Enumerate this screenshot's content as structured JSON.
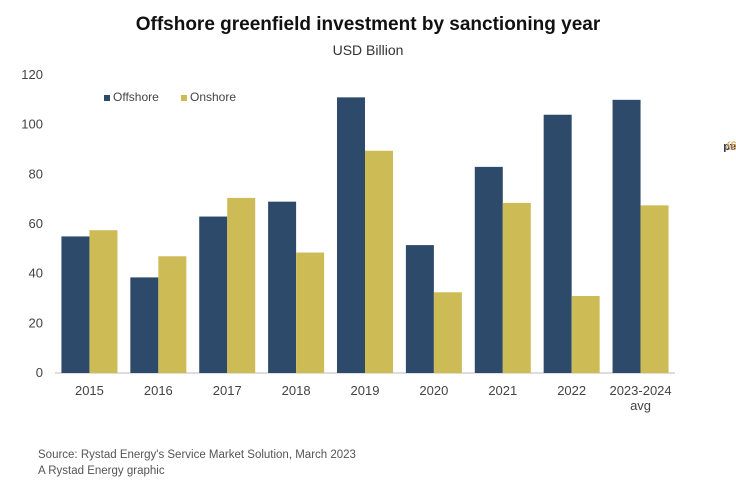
{
  "chart_data": {
    "type": "bar",
    "title": "Offshore greenfield investment by sanctioning year",
    "subtitle": "USD Billion",
    "categories": [
      "2015",
      "2016",
      "2017",
      "2018",
      "2019",
      "2020",
      "2021",
      "2022",
      "2023-2024 avg"
    ],
    "category_lines": [
      [
        "2015"
      ],
      [
        "2016"
      ],
      [
        "2017"
      ],
      [
        "2018"
      ],
      [
        "2019"
      ],
      [
        "2020"
      ],
      [
        "2021"
      ],
      [
        "2022"
      ],
      [
        "2023-2024",
        "avg"
      ]
    ],
    "series": [
      {
        "name": "Offshore",
        "color": "#2d4a6b",
        "values": [
          55,
          38.5,
          63,
          69,
          111,
          51.5,
          83,
          104,
          110
        ]
      },
      {
        "name": "Onshore",
        "color": "#cdbb56",
        "values": [
          57.5,
          47,
          70.5,
          48.5,
          89.5,
          32.5,
          68.5,
          31,
          67.5
        ]
      }
    ],
    "ylim": [
      0,
      120
    ],
    "yticks": [
      0,
      20,
      40,
      60,
      80,
      100,
      120
    ],
    "xlabel": "",
    "ylabel": "",
    "legend_position": "top-left"
  },
  "footer": {
    "source": "Source: Rystad Energy's Service Market Solution, March 2023",
    "credit": "A Rystad Energy graphic"
  },
  "brand": {
    "part1": "Rystad",
    "part2": "Energy"
  }
}
